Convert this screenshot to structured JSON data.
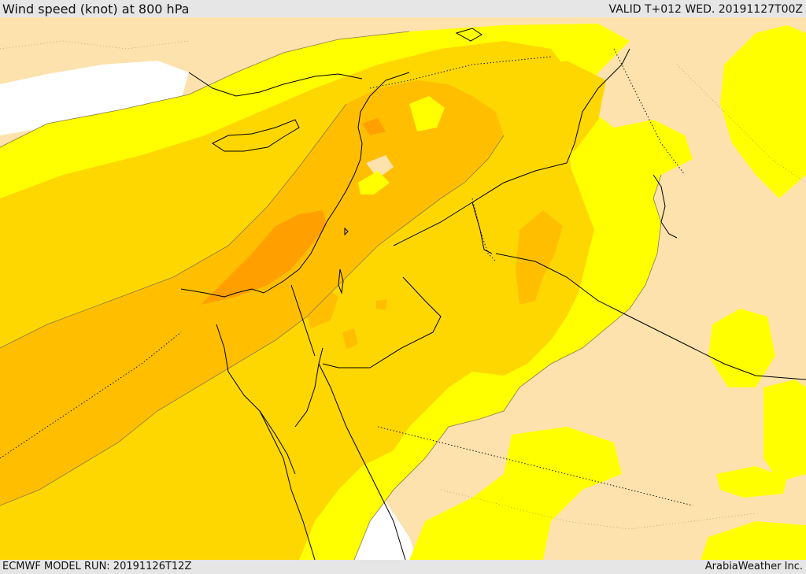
{
  "header": {
    "title": "Wind speed (knot) at 800 hPa",
    "valid": "VALID T+012 WED. 20191127T00Z"
  },
  "footer": {
    "model_run": "ECMWF MODEL RUN: 20191126T12Z",
    "credit": "ArabiaWeather Inc."
  },
  "map": {
    "variable": "wind speed",
    "level": "800 hPa",
    "unit": "knot",
    "fill_colors": {
      "lowest": "#ffffff",
      "low": "#fde2ad",
      "moderate": "#ffff00",
      "strong": "#ffd700",
      "stronger": "#ffbf00",
      "strongest": "#ffa000"
    }
  }
}
